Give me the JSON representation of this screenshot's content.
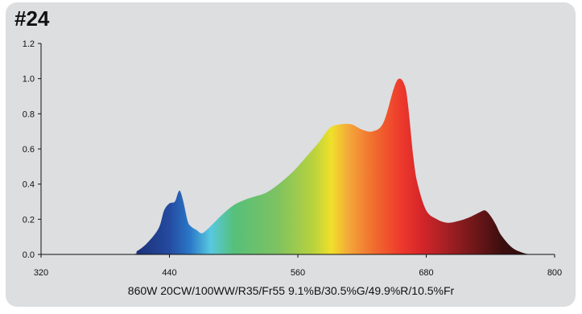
{
  "page": {
    "title": "#24",
    "caption": "860W   20CW/100WW/R35/Fr55   9.1%B/30.5%G/49.9%R/10.5%Fr"
  },
  "colors": {
    "card_bg": "#dcdee0",
    "axis": "#111111"
  },
  "chart_data": {
    "type": "area",
    "title": "",
    "xlabel": "",
    "ylabel": "",
    "xlim": [
      320,
      800
    ],
    "ylim": [
      0,
      1.2
    ],
    "grid": false,
    "legend": "none",
    "x_ticks": [
      320,
      440,
      560,
      680,
      800
    ],
    "y_ticks": [
      "0.0",
      "0.2",
      "0.4",
      "0.6",
      "0.8",
      "1.0",
      "1.2"
    ],
    "fill": "visible-spectrum gradient (blue → green → yellow → red → dark red)",
    "series": [
      {
        "x": [
          320,
          400,
          410,
          420,
          430,
          435,
          440,
          445,
          448,
          450,
          453,
          457,
          460,
          465,
          470,
          475,
          480,
          490,
          500,
          510,
          520,
          530,
          540,
          550,
          560,
          570,
          580,
          590,
          600,
          610,
          620,
          630,
          640,
          650,
          655,
          660,
          663,
          668,
          672,
          680,
          690,
          700,
          710,
          720,
          730,
          735,
          740,
          745,
          750,
          760,
          770,
          780,
          800
        ],
        "y": [
          0,
          0,
          0.02,
          0.07,
          0.15,
          0.25,
          0.29,
          0.3,
          0.35,
          0.36,
          0.3,
          0.19,
          0.16,
          0.14,
          0.12,
          0.14,
          0.17,
          0.23,
          0.28,
          0.31,
          0.33,
          0.35,
          0.39,
          0.44,
          0.5,
          0.57,
          0.64,
          0.72,
          0.74,
          0.74,
          0.71,
          0.7,
          0.75,
          0.95,
          1.0,
          0.96,
          0.85,
          0.55,
          0.4,
          0.25,
          0.2,
          0.18,
          0.19,
          0.21,
          0.24,
          0.25,
          0.22,
          0.17,
          0.11,
          0.04,
          0.01,
          0,
          0
        ]
      }
    ]
  }
}
